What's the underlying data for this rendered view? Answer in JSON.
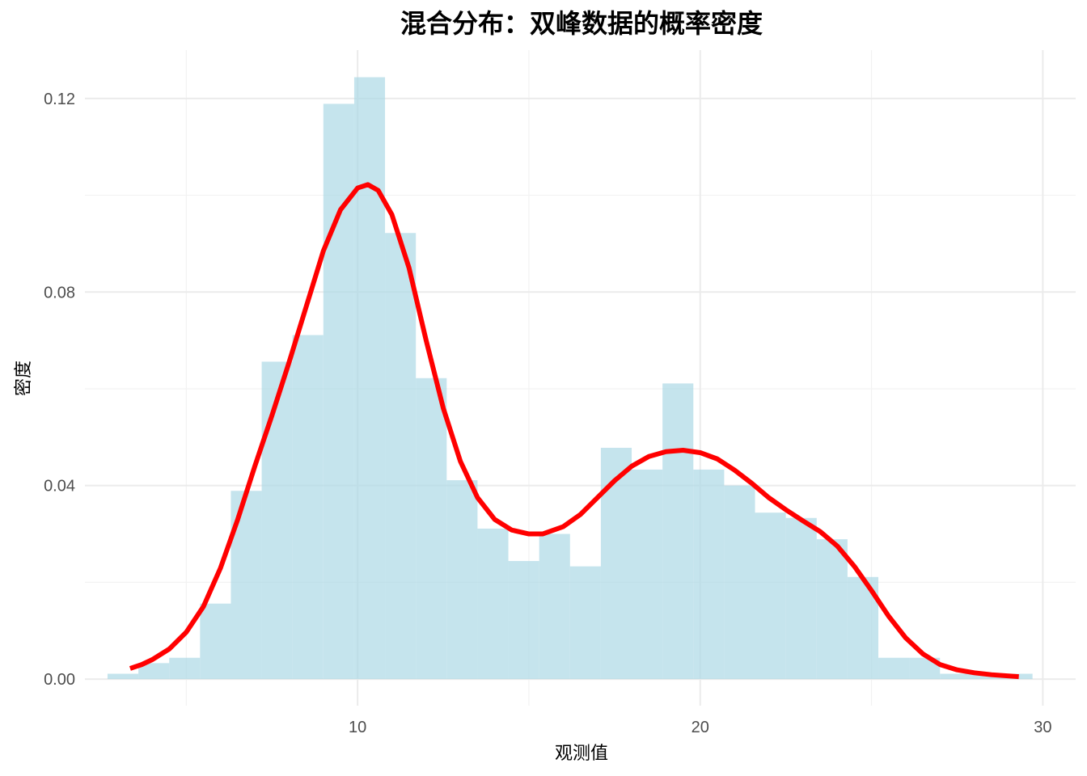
{
  "chart_data": {
    "type": "bar",
    "title": "混合分布：双峰数据的概率密度",
    "xlabel": "观测值",
    "ylabel": "密度",
    "xlim": [
      2.04,
      30.96
    ],
    "ylim": [
      -0.0055,
      0.13
    ],
    "x_ticks": [
      10,
      20,
      30
    ],
    "x_tick_labels": [
      "10",
      "20",
      "30"
    ],
    "x_minor_ticks": [
      5,
      15,
      25
    ],
    "y_ticks": [
      0.0,
      0.04,
      0.08,
      0.12
    ],
    "y_tick_labels": [
      "0.00",
      "0.04",
      "0.08",
      "0.12"
    ],
    "y_minor_ticks": [
      0.02,
      0.06,
      0.1
    ],
    "grid": true,
    "bin_width": 0.9,
    "bins": [
      {
        "x0": 2.7,
        "x1": 3.6,
        "density": 0.0011
      },
      {
        "x0": 3.6,
        "x1": 4.5,
        "density": 0.0033
      },
      {
        "x0": 4.5,
        "x1": 5.4,
        "density": 0.0044
      },
      {
        "x0": 5.4,
        "x1": 6.3,
        "density": 0.0156
      },
      {
        "x0": 6.3,
        "x1": 7.2,
        "density": 0.0389
      },
      {
        "x0": 7.2,
        "x1": 8.1,
        "density": 0.0656
      },
      {
        "x0": 8.1,
        "x1": 9.0,
        "density": 0.0711
      },
      {
        "x0": 9.0,
        "x1": 9.9,
        "density": 0.1189
      },
      {
        "x0": 9.9,
        "x1": 10.8,
        "density": 0.1244
      },
      {
        "x0": 10.8,
        "x1": 11.7,
        "density": 0.0922
      },
      {
        "x0": 11.7,
        "x1": 12.6,
        "density": 0.0622
      },
      {
        "x0": 12.6,
        "x1": 13.5,
        "density": 0.0411
      },
      {
        "x0": 13.5,
        "x1": 14.4,
        "density": 0.0311
      },
      {
        "x0": 14.4,
        "x1": 15.3,
        "density": 0.0244
      },
      {
        "x0": 15.3,
        "x1": 16.2,
        "density": 0.03
      },
      {
        "x0": 16.2,
        "x1": 17.1,
        "density": 0.0233
      },
      {
        "x0": 17.1,
        "x1": 18.0,
        "density": 0.0478
      },
      {
        "x0": 18.0,
        "x1": 18.9,
        "density": 0.0433
      },
      {
        "x0": 18.9,
        "x1": 19.8,
        "density": 0.0611
      },
      {
        "x0": 19.8,
        "x1": 20.7,
        "density": 0.0433
      },
      {
        "x0": 20.7,
        "x1": 21.6,
        "density": 0.04
      },
      {
        "x0": 21.6,
        "x1": 22.5,
        "density": 0.0344
      },
      {
        "x0": 22.5,
        "x1": 23.4,
        "density": 0.0333
      },
      {
        "x0": 23.4,
        "x1": 24.3,
        "density": 0.0289
      },
      {
        "x0": 24.3,
        "x1": 25.2,
        "density": 0.0211
      },
      {
        "x0": 25.2,
        "x1": 26.1,
        "density": 0.0044
      },
      {
        "x0": 26.1,
        "x1": 27.0,
        "density": 0.0044
      },
      {
        "x0": 27.0,
        "x1": 27.9,
        "density": 0.0011
      },
      {
        "x0": 27.9,
        "x1": 28.8,
        "density": 0.0011
      },
      {
        "x0": 28.8,
        "x1": 29.7,
        "density": 0.0011
      }
    ],
    "series": [
      {
        "type": "line",
        "points": [
          [
            3.36,
            0.0022
          ],
          [
            3.7,
            0.003
          ],
          [
            4.0,
            0.004
          ],
          [
            4.5,
            0.0062
          ],
          [
            5.0,
            0.0097
          ],
          [
            5.5,
            0.015
          ],
          [
            6.0,
            0.023
          ],
          [
            6.5,
            0.033
          ],
          [
            7.0,
            0.044
          ],
          [
            7.5,
            0.0545
          ],
          [
            8.0,
            0.0655
          ],
          [
            8.5,
            0.077
          ],
          [
            9.0,
            0.0885
          ],
          [
            9.5,
            0.097
          ],
          [
            10.0,
            0.1015
          ],
          [
            10.3,
            0.1022
          ],
          [
            10.6,
            0.101
          ],
          [
            11.0,
            0.096
          ],
          [
            11.5,
            0.085
          ],
          [
            12.0,
            0.07
          ],
          [
            12.5,
            0.056
          ],
          [
            13.0,
            0.045
          ],
          [
            13.5,
            0.0375
          ],
          [
            14.0,
            0.033
          ],
          [
            14.5,
            0.0308
          ],
          [
            15.0,
            0.03
          ],
          [
            15.4,
            0.03
          ],
          [
            16.0,
            0.0315
          ],
          [
            16.5,
            0.034
          ],
          [
            17.0,
            0.0375
          ],
          [
            17.5,
            0.041
          ],
          [
            18.0,
            0.044
          ],
          [
            18.5,
            0.046
          ],
          [
            19.0,
            0.047
          ],
          [
            19.5,
            0.0473
          ],
          [
            20.0,
            0.0468
          ],
          [
            20.5,
            0.0455
          ],
          [
            21.0,
            0.0432
          ],
          [
            21.5,
            0.0405
          ],
          [
            22.0,
            0.0375
          ],
          [
            22.5,
            0.035
          ],
          [
            23.0,
            0.0327
          ],
          [
            23.5,
            0.0305
          ],
          [
            24.0,
            0.0275
          ],
          [
            24.5,
            0.0233
          ],
          [
            25.0,
            0.0183
          ],
          [
            25.5,
            0.013
          ],
          [
            26.0,
            0.0085
          ],
          [
            26.5,
            0.0052
          ],
          [
            27.0,
            0.003
          ],
          [
            27.5,
            0.0019
          ],
          [
            28.0,
            0.0013
          ],
          [
            28.5,
            0.0009
          ],
          [
            29.3,
            0.0005
          ]
        ],
        "color": "#ff0000"
      }
    ],
    "bar_color": "#add8e6",
    "grid_color": "#ebebeb"
  }
}
